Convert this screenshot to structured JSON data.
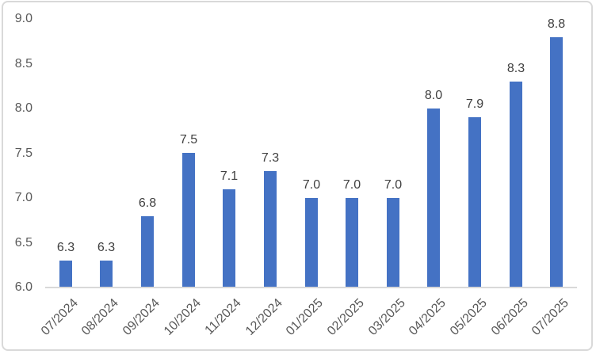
{
  "chart_data": {
    "type": "bar",
    "title": "",
    "xlabel": "",
    "ylabel": "",
    "categories": [
      "07/2024",
      "08/2024",
      "09/2024",
      "10/2024",
      "11/2024",
      "12/2024",
      "01/2025",
      "02/2025",
      "03/2025",
      "04/2025",
      "05/2025",
      "06/2025",
      "07/2025"
    ],
    "values": [
      6.3,
      6.3,
      6.8,
      7.5,
      7.1,
      7.3,
      7.0,
      7.0,
      7.0,
      8.0,
      7.9,
      8.3,
      8.8
    ],
    "labels": [
      "6.3",
      "6.3",
      "6.8",
      "7.5",
      "7.1",
      "7.3",
      "7.0",
      "7.0",
      "7.0",
      "8.0",
      "7.9",
      "8.3",
      "8.8"
    ],
    "ylim": [
      6.0,
      9.0
    ],
    "ytick_step": 0.5,
    "ytick_labels": [
      "6.0",
      "6.5",
      "7.0",
      "7.5",
      "8.0",
      "8.5",
      "9.0"
    ],
    "grid": false,
    "legend": false,
    "xlabel_rotation_deg": 45,
    "bar_color": "#4472C4",
    "axis_label_color": "#595959",
    "data_label_color": "#404040",
    "axis_line_color": "#D9D9D9",
    "frame_border_color": "#D9D9D9",
    "background_color": "#FFFFFF"
  }
}
